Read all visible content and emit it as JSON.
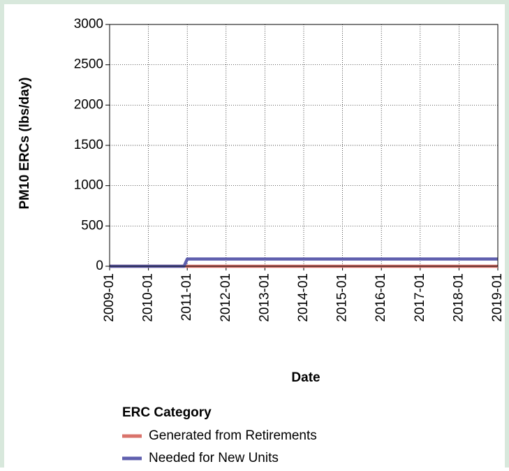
{
  "chart_data": {
    "type": "line",
    "x": [
      "2009-01",
      "2010-12",
      "2011-01",
      "2019-01"
    ],
    "series": [
      {
        "name": "Generated from Retirements",
        "color": "#d9736b",
        "values": [
          0,
          0,
          0,
          0
        ]
      },
      {
        "name": "Needed for New Units",
        "color": "#5f5fae",
        "values": [
          0,
          0,
          90,
          90
        ]
      }
    ],
    "xlim": [
      "2009-01",
      "2019-01"
    ],
    "xticks": [
      "2009-01",
      "2010-01",
      "2011-01",
      "2012-01",
      "2013-01",
      "2014-01",
      "2015-01",
      "2016-01",
      "2017-01",
      "2018-01",
      "2019-01"
    ],
    "ylim": [
      0,
      3000
    ],
    "yticks": [
      0,
      500,
      1000,
      1500,
      2000,
      2500,
      3000
    ],
    "xlabel": "Date",
    "ylabel": "PM10 ERCs (lbs/day)",
    "legend_title": "ERC Category",
    "grid": true
  }
}
